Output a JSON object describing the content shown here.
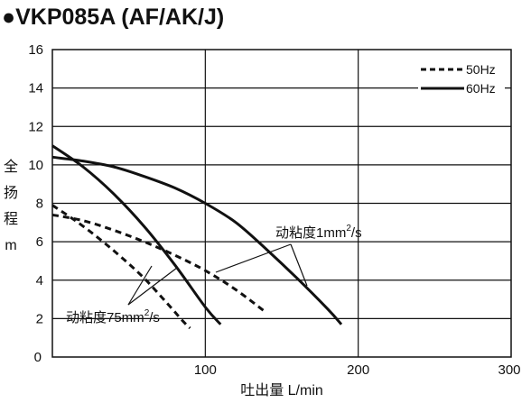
{
  "chart_data": {
    "type": "line",
    "title": "●VKP085A (AF/AK/J)",
    "xlabel": "吐出量 L/min",
    "ylabel": [
      "全",
      "扬",
      "程",
      "m"
    ],
    "xlim": [
      0,
      300
    ],
    "ylim": [
      0,
      16
    ],
    "xticks": [
      100,
      200,
      300
    ],
    "yticks": [
      0,
      2,
      4,
      6,
      8,
      10,
      12,
      14,
      16
    ],
    "grid": true,
    "legend": [
      {
        "label": "50Hz",
        "style": "dashed"
      },
      {
        "label": "60Hz",
        "style": "solid"
      }
    ],
    "legend_position": "top-right",
    "series": [
      {
        "name": "50Hz 动粘度1mm²/s",
        "style": "dashed",
        "x": [
          0,
          20,
          40,
          60,
          80,
          100,
          120,
          140
        ],
        "y": [
          7.4,
          7.1,
          6.6,
          6.0,
          5.3,
          4.5,
          3.5,
          2.3
        ]
      },
      {
        "name": "60Hz 动粘度1mm²/s",
        "style": "solid",
        "x": [
          0,
          20,
          40,
          60,
          80,
          100,
          120,
          140,
          160,
          180,
          189
        ],
        "y": [
          10.4,
          10.2,
          9.9,
          9.4,
          8.8,
          8.0,
          7.0,
          5.6,
          4.1,
          2.5,
          1.7
        ]
      },
      {
        "name": "50Hz 动粘度75mm²/s",
        "style": "dashed",
        "x": [
          0,
          15,
          30,
          45,
          60,
          75,
          85,
          90
        ],
        "y": [
          7.9,
          7.1,
          6.2,
          5.2,
          4.1,
          2.8,
          1.9,
          1.5
        ]
      },
      {
        "name": "60Hz 动粘度75mm²/s",
        "style": "solid",
        "x": [
          0,
          20,
          40,
          60,
          80,
          100,
          110
        ],
        "y": [
          11.0,
          9.9,
          8.5,
          6.8,
          4.8,
          2.6,
          1.7
        ]
      }
    ],
    "annotations": [
      {
        "main": "动粘度1mm",
        "sup": "2",
        "tail": "/s"
      },
      {
        "main": "动粘度75mm",
        "sup": "2",
        "tail": "/s"
      }
    ]
  }
}
